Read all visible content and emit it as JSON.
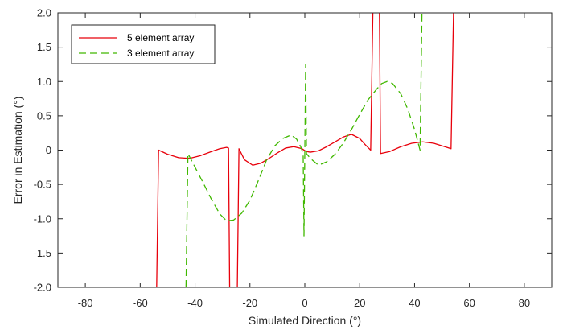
{
  "chart_data": {
    "type": "line",
    "xlabel": "Simulated Direction (°)",
    "ylabel": "Error in Estimation (°)",
    "xlim": [
      -90,
      90
    ],
    "ylim": [
      -2.0,
      2.0
    ],
    "xticks": [
      -80,
      -60,
      -40,
      -20,
      0,
      20,
      40,
      60,
      80
    ],
    "xtick_labels": [
      "-80",
      "-60",
      "-40",
      "-20",
      "0",
      "20",
      "40",
      "60",
      "80"
    ],
    "yticks": [
      -2.0,
      -1.5,
      -1.0,
      -0.5,
      0,
      0.5,
      1.0,
      1.5,
      2.0
    ],
    "ytick_labels": [
      "-2.0",
      "-1.5",
      "-1.0",
      "-0.5",
      "0",
      "0.5",
      "1.0",
      "1.5",
      "2.0"
    ],
    "grid": false,
    "legend_position": "top-left",
    "series": [
      {
        "name": "5 element array",
        "color": "#e8000b",
        "dash": "solid",
        "points": [
          [
            -54,
            -2.0
          ],
          [
            -53.3,
            0.0
          ],
          [
            -50,
            -0.06
          ],
          [
            -46,
            -0.11
          ],
          [
            -42,
            -0.12
          ],
          [
            -38,
            -0.08
          ],
          [
            -34,
            -0.02
          ],
          [
            -31,
            0.02
          ],
          [
            -28.5,
            0.04
          ],
          [
            -27.8,
            0.03
          ],
          [
            -27.4,
            -2.0
          ],
          null,
          [
            -24.6,
            -2.0
          ],
          [
            -24,
            0.02
          ],
          [
            -22,
            -0.14
          ],
          [
            -19,
            -0.22
          ],
          [
            -16,
            -0.19
          ],
          [
            -13,
            -0.12
          ],
          [
            -10,
            -0.04
          ],
          [
            -7,
            0.03
          ],
          [
            -4,
            0.05
          ],
          [
            -1,
            0.02
          ],
          [
            0.5,
            -0.02
          ],
          [
            2,
            -0.03
          ],
          [
            5,
            -0.01
          ],
          [
            8,
            0.05
          ],
          [
            11,
            0.12
          ],
          [
            14,
            0.19
          ],
          [
            17,
            0.23
          ],
          [
            20,
            0.17
          ],
          [
            22,
            0.08
          ],
          [
            23.5,
            0.02
          ],
          [
            24,
            0.0
          ],
          [
            24.8,
            2.0
          ],
          null,
          [
            27.2,
            2.0
          ],
          [
            27.6,
            -0.05
          ],
          [
            31,
            -0.02
          ],
          [
            35,
            0.05
          ],
          [
            39,
            0.1
          ],
          [
            43,
            0.12
          ],
          [
            47,
            0.1
          ],
          [
            51,
            0.05
          ],
          [
            53.3,
            0.02
          ],
          [
            54.2,
            2.0
          ]
        ]
      },
      {
        "name": "3 element array",
        "color": "#40b800",
        "dash": "dashed",
        "points": [
          [
            -43.3,
            -2.0
          ],
          [
            -42.6,
            -0.05
          ],
          [
            -40,
            -0.25
          ],
          [
            -37,
            -0.48
          ],
          [
            -34,
            -0.72
          ],
          [
            -31,
            -0.93
          ],
          [
            -28.5,
            -1.03
          ],
          [
            -26,
            -1.02
          ],
          [
            -23,
            -0.92
          ],
          [
            -20,
            -0.73
          ],
          [
            -17,
            -0.45
          ],
          [
            -14,
            -0.15
          ],
          [
            -11,
            0.06
          ],
          [
            -8,
            0.17
          ],
          [
            -5,
            0.22
          ],
          [
            -3,
            0.16
          ],
          [
            -1.5,
            0.05
          ],
          [
            -0.6,
            -0.05
          ],
          [
            -0.3,
            -1.25
          ],
          [
            0.3,
            1.25
          ],
          [
            0.6,
            -0.05
          ],
          [
            2,
            -0.12
          ],
          [
            5,
            -0.22
          ],
          [
            8,
            -0.17
          ],
          [
            11,
            -0.06
          ],
          [
            14,
            0.1
          ],
          [
            17,
            0.3
          ],
          [
            20,
            0.52
          ],
          [
            23,
            0.73
          ],
          [
            26,
            0.88
          ],
          [
            28,
            0.97
          ],
          [
            30,
            1.0
          ],
          [
            32,
            0.97
          ],
          [
            35,
            0.82
          ],
          [
            37.5,
            0.6
          ],
          [
            40,
            0.3
          ],
          [
            42,
            0.0
          ],
          [
            42.7,
            2.0
          ]
        ]
      }
    ]
  }
}
